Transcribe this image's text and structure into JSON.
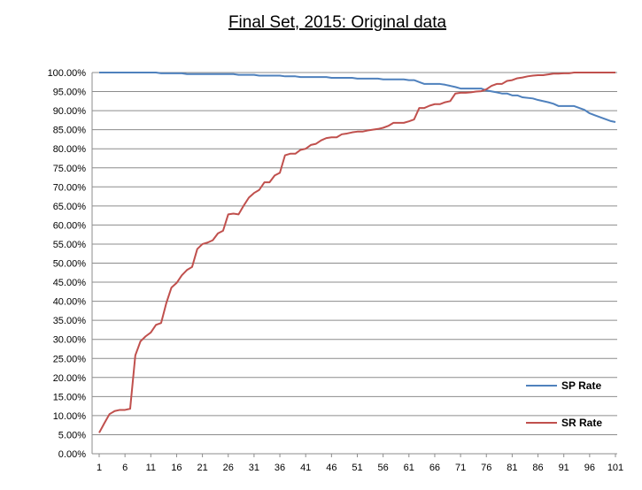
{
  "chart_data": {
    "type": "line",
    "title": "Final Set, 2015: Original data",
    "xlabel": "",
    "ylabel": "",
    "ylim": [
      0,
      1
    ],
    "xlim": [
      1,
      101
    ],
    "y_tick_labels": [
      "0.00%",
      "5.00%",
      "10.00%",
      "15.00%",
      "20.00%",
      "25.00%",
      "30.00%",
      "35.00%",
      "40.00%",
      "45.00%",
      "50.00%",
      "55.00%",
      "60.00%",
      "65.00%",
      "70.00%",
      "75.00%",
      "80.00%",
      "85.00%",
      "90.00%",
      "95.00%",
      "100.00%"
    ],
    "x_tick_labels": [
      "1",
      "6",
      "11",
      "16",
      "21",
      "26",
      "31",
      "36",
      "41",
      "46",
      "51",
      "56",
      "61",
      "66",
      "71",
      "76",
      "81",
      "86",
      "91",
      "96",
      "101"
    ],
    "grid": true,
    "legend_position": "bottom-right",
    "series": [
      {
        "name": "SP Rate",
        "color": "#4f81bd",
        "points": [
          [
            1,
            1.0
          ],
          [
            12,
            1.0
          ],
          [
            13,
            0.998
          ],
          [
            17,
            0.998
          ],
          [
            18,
            0.996
          ],
          [
            27,
            0.996
          ],
          [
            28,
            0.994
          ],
          [
            31,
            0.994
          ],
          [
            32,
            0.992
          ],
          [
            36,
            0.992
          ],
          [
            37,
            0.99
          ],
          [
            39,
            0.99
          ],
          [
            40,
            0.988
          ],
          [
            45,
            0.988
          ],
          [
            46,
            0.986
          ],
          [
            50,
            0.986
          ],
          [
            51,
            0.984
          ],
          [
            55,
            0.984
          ],
          [
            56,
            0.982
          ],
          [
            60,
            0.982
          ],
          [
            61,
            0.98
          ],
          [
            62,
            0.98
          ],
          [
            63,
            0.975
          ],
          [
            64,
            0.97
          ],
          [
            67,
            0.97
          ],
          [
            68,
            0.968
          ],
          [
            70,
            0.962
          ],
          [
            71,
            0.958
          ],
          [
            75,
            0.958
          ],
          [
            76,
            0.953
          ],
          [
            78,
            0.948
          ],
          [
            79,
            0.945
          ],
          [
            80,
            0.945
          ],
          [
            81,
            0.94
          ],
          [
            82,
            0.94
          ],
          [
            83,
            0.935
          ],
          [
            85,
            0.932
          ],
          [
            86,
            0.928
          ],
          [
            88,
            0.922
          ],
          [
            89,
            0.918
          ],
          [
            90,
            0.912
          ],
          [
            93,
            0.912
          ],
          [
            95,
            0.902
          ],
          [
            96,
            0.893
          ],
          [
            97,
            0.888
          ],
          [
            98,
            0.883
          ],
          [
            99,
            0.878
          ],
          [
            100,
            0.873
          ],
          [
            101,
            0.87
          ]
        ]
      },
      {
        "name": "SR Rate",
        "color": "#c0504d",
        "points": [
          [
            1,
            0.055
          ],
          [
            2,
            0.08
          ],
          [
            3,
            0.104
          ],
          [
            4,
            0.112
          ],
          [
            5,
            0.115
          ],
          [
            6,
            0.115
          ],
          [
            7,
            0.118
          ],
          [
            8,
            0.258
          ],
          [
            9,
            0.295
          ],
          [
            10,
            0.308
          ],
          [
            11,
            0.318
          ],
          [
            12,
            0.338
          ],
          [
            13,
            0.343
          ],
          [
            14,
            0.395
          ],
          [
            15,
            0.436
          ],
          [
            16,
            0.448
          ],
          [
            17,
            0.468
          ],
          [
            18,
            0.482
          ],
          [
            19,
            0.49
          ],
          [
            20,
            0.537
          ],
          [
            21,
            0.55
          ],
          [
            22,
            0.554
          ],
          [
            23,
            0.56
          ],
          [
            24,
            0.578
          ],
          [
            25,
            0.585
          ],
          [
            26,
            0.628
          ],
          [
            27,
            0.63
          ],
          [
            28,
            0.628
          ],
          [
            29,
            0.651
          ],
          [
            30,
            0.672
          ],
          [
            31,
            0.684
          ],
          [
            32,
            0.692
          ],
          [
            33,
            0.712
          ],
          [
            34,
            0.712
          ],
          [
            35,
            0.73
          ],
          [
            36,
            0.737
          ],
          [
            37,
            0.783
          ],
          [
            38,
            0.787
          ],
          [
            39,
            0.787
          ],
          [
            40,
            0.797
          ],
          [
            41,
            0.8
          ],
          [
            42,
            0.81
          ],
          [
            43,
            0.813
          ],
          [
            44,
            0.822
          ],
          [
            45,
            0.828
          ],
          [
            46,
            0.83
          ],
          [
            47,
            0.83
          ],
          [
            48,
            0.838
          ],
          [
            49,
            0.84
          ],
          [
            50,
            0.843
          ],
          [
            51,
            0.845
          ],
          [
            52,
            0.845
          ],
          [
            53,
            0.848
          ],
          [
            54,
            0.85
          ],
          [
            55,
            0.852
          ],
          [
            56,
            0.855
          ],
          [
            57,
            0.86
          ],
          [
            58,
            0.868
          ],
          [
            59,
            0.868
          ],
          [
            60,
            0.868
          ],
          [
            61,
            0.872
          ],
          [
            62,
            0.877
          ],
          [
            63,
            0.907
          ],
          [
            64,
            0.907
          ],
          [
            65,
            0.913
          ],
          [
            66,
            0.917
          ],
          [
            67,
            0.917
          ],
          [
            68,
            0.922
          ],
          [
            69,
            0.925
          ],
          [
            70,
            0.945
          ],
          [
            71,
            0.947
          ],
          [
            72,
            0.947
          ],
          [
            73,
            0.948
          ],
          [
            74,
            0.95
          ],
          [
            75,
            0.951
          ],
          [
            76,
            0.956
          ],
          [
            77,
            0.965
          ],
          [
            78,
            0.97
          ],
          [
            79,
            0.97
          ],
          [
            80,
            0.978
          ],
          [
            81,
            0.98
          ],
          [
            82,
            0.985
          ],
          [
            83,
            0.987
          ],
          [
            84,
            0.99
          ],
          [
            85,
            0.992
          ],
          [
            86,
            0.993
          ],
          [
            87,
            0.993
          ],
          [
            88,
            0.995
          ],
          [
            89,
            0.997
          ],
          [
            90,
            0.997
          ],
          [
            91,
            0.998
          ],
          [
            92,
            0.998
          ],
          [
            93,
            1.0
          ],
          [
            101,
            1.0
          ]
        ]
      }
    ]
  }
}
